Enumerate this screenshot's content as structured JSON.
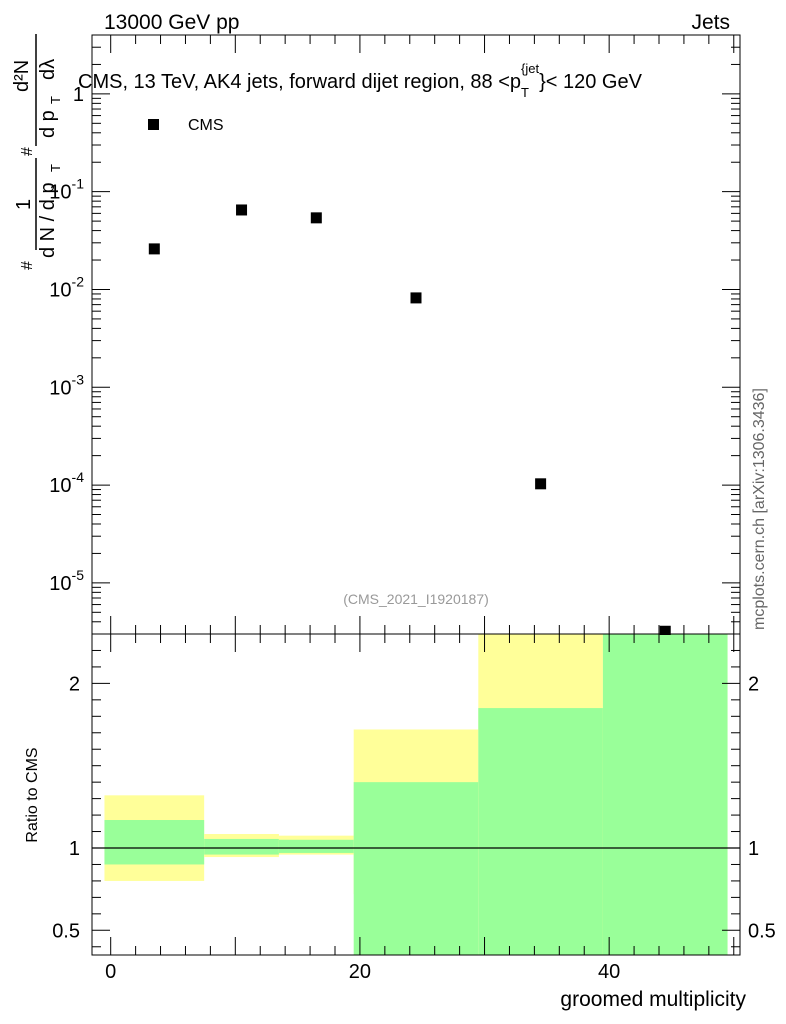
{
  "header": {
    "left": "13000 GeV pp",
    "right": "Jets"
  },
  "side_text": "mcplots.cern.ch [arXiv:1306.3436]",
  "watermark": "(CMS_2021_I1920187)",
  "chart_data": [
    {
      "type": "scatter",
      "title": "CMS, 13 TeV, AK4 jets, forward dijet region, 88 < p_T^{jet} < 120 GeV",
      "title_parts": {
        "main": "CMS, 13 TeV, AK4 jets, forward dijet region, 88 <p",
        "sub": "T",
        "sup": "{jet",
        "tail": "}< 120 GeV"
      },
      "ylabel": "1 / (dN / dp_T) · d²N / (dp_T dλ)",
      "yscale": "log",
      "ylim": [
        3e-06,
        4
      ],
      "xlim": [
        -1.5,
        50.5
      ],
      "y_ticks": [
        {
          "base": "10",
          "exp": "-5",
          "value": 1e-05
        },
        {
          "base": "10",
          "exp": "-4",
          "value": 0.0001
        },
        {
          "base": "10",
          "exp": "-3",
          "value": 0.001
        },
        {
          "base": "10",
          "exp": "-2",
          "value": 0.01
        },
        {
          "base": "10",
          "exp": "-1",
          "value": 0.1
        },
        {
          "base": "1",
          "exp": "",
          "value": 1
        }
      ],
      "legend": {
        "label": "CMS",
        "position": "top-left"
      },
      "series": [
        {
          "name": "CMS",
          "x": [
            3.5,
            10.5,
            16.5,
            24.5,
            34.5,
            44.5
          ],
          "y": [
            0.026,
            0.065,
            0.054,
            0.0082,
            0.000103,
            3.2e-06
          ]
        }
      ]
    },
    {
      "type": "bar",
      "ylabel": "Ratio to CMS",
      "xlabel": "groomed multiplicity",
      "xlim": [
        -1.5,
        50.5
      ],
      "ylim": [
        0.35,
        2.3
      ],
      "x_ticks": [
        "0",
        "20",
        "40"
      ],
      "x_tick_values": [
        0,
        20,
        40
      ],
      "y_ticks": [
        "0.5",
        "1",
        "2"
      ],
      "y_tick_values": [
        0.5,
        1,
        2
      ],
      "reference_line": 1,
      "bands": {
        "bins": [
          [
            -0.5,
            7.5
          ],
          [
            7.5,
            13.5
          ],
          [
            13.5,
            19.5
          ],
          [
            19.5,
            29.5
          ],
          [
            29.5,
            39.5
          ],
          [
            39.5,
            49.5
          ]
        ],
        "yellow": [
          [
            0.8,
            1.32
          ],
          [
            0.945,
            1.085
          ],
          [
            0.96,
            1.075
          ],
          [
            0.72,
            1.72
          ],
          [
            0.35,
            2.3
          ],
          [
            0.35,
            2.3
          ]
        ],
        "green": [
          [
            0.9,
            1.17
          ],
          [
            0.96,
            1.055
          ],
          [
            0.97,
            1.05
          ],
          [
            0.35,
            1.4
          ],
          [
            0.35,
            1.85
          ],
          [
            0.35,
            2.3
          ]
        ]
      },
      "band_colors": {
        "yellow": "#ffff99",
        "green": "#99ff99"
      }
    }
  ]
}
